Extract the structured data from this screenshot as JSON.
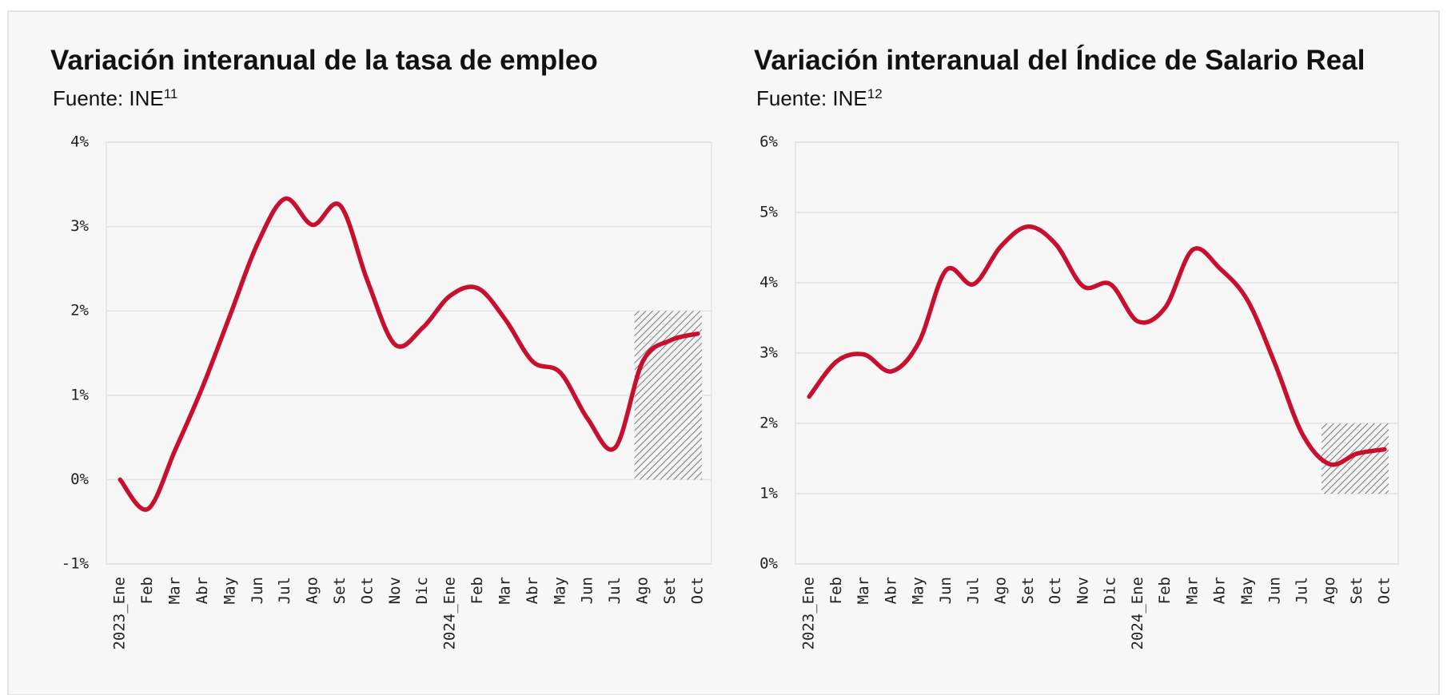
{
  "chart_data": [
    {
      "type": "line",
      "title": "Variación interanual de la tasa de empleo",
      "source": "Fuente: INE",
      "footnote": "11",
      "categories": [
        "2023_Ene",
        "Feb",
        "Mar",
        "Abr",
        "May",
        "Jun",
        "Jul",
        "Ago",
        "Set",
        "Oct",
        "Nov",
        "Dic",
        "2024_Ene",
        "Feb",
        "Mar",
        "Abr",
        "May",
        "Jun",
        "Jul",
        "Ago",
        "Set",
        "Oct"
      ],
      "series": [
        {
          "color": "#c8102e",
          "values": [
            0.0,
            -0.35,
            0.35,
            1.1,
            1.95,
            2.8,
            3.33,
            3.02,
            3.25,
            2.35,
            1.6,
            1.8,
            2.18,
            2.27,
            1.9,
            1.4,
            1.27,
            0.72,
            0.38,
            1.4,
            1.65,
            1.73
          ]
        }
      ],
      "ylim": [
        -1,
        4
      ],
      "yticks": [
        {
          "value": -1,
          "label": "-1%"
        },
        {
          "value": 0,
          "label": "0%"
        },
        {
          "value": 1,
          "label": "1%"
        },
        {
          "value": 2,
          "label": "2%"
        },
        {
          "value": 3,
          "label": "3%"
        },
        {
          "value": 4,
          "label": "4%"
        }
      ],
      "grid": true,
      "highlight": {
        "categories": [
          19,
          21
        ],
        "ylim": [
          0,
          2
        ]
      }
    },
    {
      "type": "line",
      "title": "Variación interanual del Índice de Salario Real",
      "source": "Fuente: INE",
      "footnote": "12",
      "categories": [
        "2023_Ene",
        "Feb",
        "Mar",
        "Abr",
        "May",
        "Jun",
        "Jul",
        "Ago",
        "Set",
        "Oct",
        "Nov",
        "Dic",
        "2024_Ene",
        "Feb",
        "Mar",
        "Abr",
        "May",
        "Jun",
        "Jul",
        "Ago",
        "Set",
        "Oct"
      ],
      "series": [
        {
          "color": "#c8102e",
          "values": [
            2.38,
            2.88,
            2.98,
            2.74,
            3.15,
            4.18,
            3.98,
            4.52,
            4.8,
            4.55,
            3.95,
            3.98,
            3.45,
            3.65,
            4.47,
            4.2,
            3.75,
            2.85,
            1.85,
            1.42,
            1.57,
            1.63
          ]
        }
      ],
      "ylim": [
        0,
        6
      ],
      "yticks": [
        {
          "value": 0,
          "label": "0%"
        },
        {
          "value": 1,
          "label": "1%"
        },
        {
          "value": 2,
          "label": "2%"
        },
        {
          "value": 3,
          "label": "3%"
        },
        {
          "value": 4,
          "label": "4%"
        },
        {
          "value": 5,
          "label": "5%"
        },
        {
          "value": 6,
          "label": "6%"
        }
      ],
      "grid": true,
      "highlight": {
        "categories": [
          19,
          21
        ],
        "ylim": [
          1,
          2
        ]
      }
    }
  ]
}
